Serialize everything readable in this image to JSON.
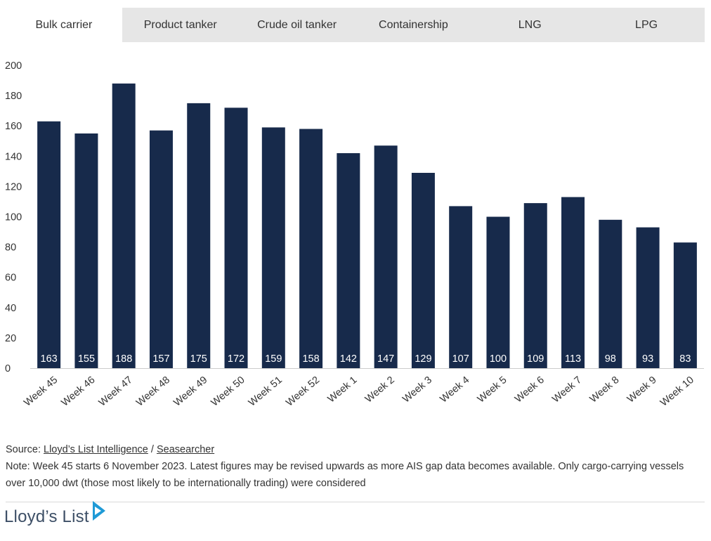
{
  "tabs": [
    {
      "label": "Bulk carrier",
      "active": true
    },
    {
      "label": "Product tanker",
      "active": false
    },
    {
      "label": "Crude oil tanker",
      "active": false
    },
    {
      "label": "Containership",
      "active": false
    },
    {
      "label": "LNG",
      "active": false
    },
    {
      "label": "LPG",
      "active": false
    }
  ],
  "chart_data": {
    "type": "bar",
    "categories": [
      "Week 45",
      "Week 46",
      "Week 47",
      "Week 48",
      "Week 49",
      "Week 50",
      "Week 51",
      "Week 52",
      "Week 1",
      "Week 2",
      "Week 3",
      "Week 4",
      "Week 5",
      "Week 6",
      "Week 7",
      "Week 8",
      "Week 9",
      "Week 10"
    ],
    "values": [
      163,
      155,
      188,
      157,
      175,
      172,
      159,
      158,
      142,
      147,
      129,
      107,
      100,
      109,
      113,
      98,
      93,
      83
    ],
    "title": "",
    "xlabel": "",
    "ylabel": "",
    "ylim": [
      0,
      200
    ],
    "yticks": [
      0,
      20,
      40,
      60,
      80,
      100,
      120,
      140,
      160,
      180,
      200
    ],
    "grid": false,
    "legend": "none",
    "bar_color": "#172a4b",
    "data_labels": true
  },
  "footer": {
    "source_prefix": "Source: ",
    "source_link_1": "Lloyd’s List Intelligence",
    "source_sep": " / ",
    "source_link_2": "Seasearcher",
    "note": "Note: Week 45 starts 6 November 2023. Latest figures may be revised upwards as more AIS gap data becomes available. Only cargo-carrying vessels over 10,000 dwt (those most likely to be internationally trading) were considered"
  },
  "logo": {
    "text": "Lloyd’s List",
    "icon": "lloyds-list-arrow-icon",
    "color": "#3d4f66",
    "accent": "#1f9ad6"
  }
}
